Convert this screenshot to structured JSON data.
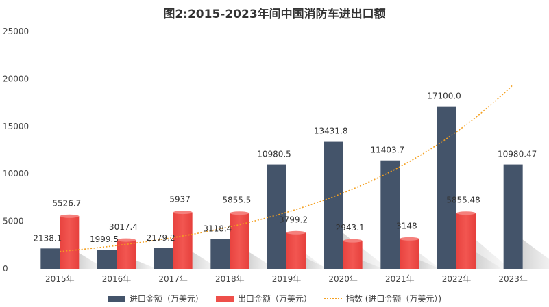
{
  "chart_data": {
    "type": "bar",
    "title": "图2:2015-2023年间中国消防车进出口额",
    "categories": [
      "2015年",
      "2016年",
      "2017年",
      "2018年",
      "2019年",
      "2020年",
      "2021年",
      "2022年",
      "2023年"
    ],
    "series": [
      {
        "name": "进口金额（万美元）",
        "values": [
          2138.1,
          1999.5,
          2179.2,
          3118.4,
          10980.5,
          13431.8,
          11403.7,
          17100.0,
          10980.47
        ],
        "labels": [
          "2138.1",
          "1999.5",
          "2179.2",
          "3118.4",
          "10980.5",
          "13431.8",
          "11403.7",
          "17100.0",
          "10980.47"
        ],
        "color": "#44546a"
      },
      {
        "name": "出口金额（万美元）",
        "values": [
          5526.7,
          3017.4,
          5937,
          5855.5,
          3799.2,
          2943.1,
          3148,
          5855.48,
          null
        ],
        "labels": [
          "5526.7",
          "3017.4",
          "5937",
          "5855.5",
          "3799.2",
          "2943.1",
          "3148",
          "5855.48",
          ""
        ],
        "color": "#ee4f4a"
      }
    ],
    "trendline": {
      "name": "指数 (进口金额（万美元）)",
      "type": "exponential",
      "color": "#f4a020"
    },
    "ylim": [
      0,
      25000
    ],
    "yticks": [
      0,
      5000,
      10000,
      15000,
      20000,
      25000
    ],
    "legend": "bottom",
    "grid": false
  }
}
